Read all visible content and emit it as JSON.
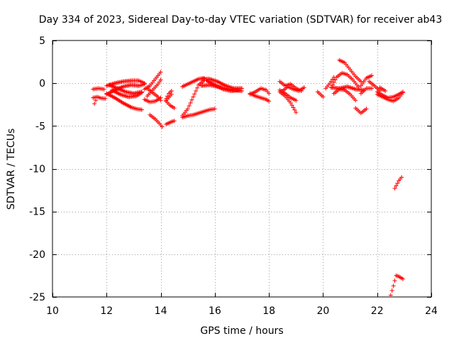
{
  "chart_data": {
    "type": "scatter",
    "title": "Day 334 of 2023, Sidereal Day-to-day VTEC variation (SDTVAR) for receiver ab43",
    "xlabel": "GPS time / hours",
    "ylabel": "SDTVAR / TECUs",
    "xlim": [
      10,
      24
    ],
    "ylim": [
      -25,
      5
    ],
    "xticks": [
      10,
      12,
      14,
      16,
      18,
      20,
      22,
      24
    ],
    "yticks": [
      5,
      0,
      -5,
      -10,
      -15,
      -20,
      -25
    ],
    "grid": true,
    "legend": "none",
    "marker": "+",
    "series_color": "#ff0000",
    "tracks": [
      {
        "x": [
          11.5,
          11.7,
          11.9
        ],
        "y": [
          -0.7,
          -0.6,
          -0.7
        ]
      },
      {
        "x": [
          11.5,
          11.65,
          11.8,
          11.95
        ],
        "y": [
          -1.7,
          -1.6,
          -1.75,
          -1.8
        ]
      },
      {
        "x": [
          11.55,
          11.6
        ],
        "y": [
          -2.4,
          -2.0
        ]
      },
      {
        "x": [
          12.0,
          12.3,
          12.6,
          12.9,
          13.2,
          13.4
        ],
        "y": [
          -0.3,
          0.0,
          0.2,
          0.3,
          0.3,
          0.0
        ]
      },
      {
        "x": [
          12.0,
          12.3,
          12.6,
          12.9,
          13.2,
          13.4
        ],
        "y": [
          -1.3,
          -0.8,
          -0.4,
          -0.2,
          -0.3,
          -0.1
        ]
      },
      {
        "x": [
          12.0,
          12.3,
          12.6,
          12.9,
          13.1,
          13.3
        ],
        "y": [
          -1.2,
          -1.7,
          -2.3,
          -2.8,
          -3.0,
          -3.1
        ]
      },
      {
        "x": [
          12.1,
          12.4,
          12.7,
          13.0,
          13.3
        ],
        "y": [
          -0.2,
          -0.6,
          -1.0,
          -1.2,
          -1.0
        ]
      },
      {
        "x": [
          12.2,
          12.5,
          12.8,
          13.1,
          13.3
        ],
        "y": [
          -0.8,
          -1.3,
          -1.6,
          -1.5,
          -1.1
        ]
      },
      {
        "x": [
          13.4,
          13.6,
          13.8,
          14.0
        ],
        "y": [
          -0.7,
          -0.3,
          0.5,
          1.3
        ]
      },
      {
        "x": [
          13.4,
          13.6,
          13.8,
          14.0
        ],
        "y": [
          -1.9,
          -2.2,
          -2.1,
          -1.7
        ]
      },
      {
        "x": [
          13.5,
          13.7,
          13.9,
          14.0
        ],
        "y": [
          -1.5,
          -0.8,
          -0.1,
          0.4
        ]
      },
      {
        "x": [
          13.5,
          13.7,
          13.9,
          14.0
        ],
        "y": [
          -0.6,
          -1.1,
          -1.6,
          -2.0
        ]
      },
      {
        "x": [
          13.6,
          13.8,
          13.95,
          14.05
        ],
        "y": [
          -3.7,
          -4.2,
          -4.7,
          -5.1
        ]
      },
      {
        "x": [
          14.2,
          14.4
        ],
        "y": [
          -2.0,
          -1.3
        ]
      },
      {
        "x": [
          14.2,
          14.3,
          14.4
        ],
        "y": [
          -1.8,
          -1.2,
          -0.9
        ]
      },
      {
        "x": [
          14.2,
          14.4,
          14.5
        ],
        "y": [
          -4.8,
          -4.5,
          -4.4
        ]
      },
      {
        "x": [
          14.2,
          14.35,
          14.5
        ],
        "y": [
          -2.1,
          -2.6,
          -2.9
        ]
      },
      {
        "x": [
          14.8,
          15.0,
          15.2,
          15.4,
          15.6,
          15.8,
          16.0
        ],
        "y": [
          -4.0,
          -3.8,
          -3.7,
          -3.5,
          -3.3,
          -3.1,
          -3.0
        ]
      },
      {
        "x": [
          14.8,
          15.0,
          15.2,
          15.4,
          15.6
        ],
        "y": [
          -3.8,
          -3.0,
          -1.6,
          -0.2,
          0.3
        ]
      },
      {
        "x": [
          14.8,
          15.0,
          15.2,
          15.4,
          15.6
        ],
        "y": [
          -0.4,
          -0.1,
          0.2,
          0.5,
          0.6
        ]
      },
      {
        "x": [
          15.5,
          15.8,
          16.1,
          16.4,
          16.7,
          17.0
        ],
        "y": [
          0.5,
          0.5,
          0.2,
          -0.3,
          -0.6,
          -0.6
        ]
      },
      {
        "x": [
          15.5,
          15.8,
          16.1,
          16.4,
          16.7,
          17.0
        ],
        "y": [
          -0.3,
          -0.2,
          -0.4,
          -0.6,
          -0.8,
          -0.9
        ]
      },
      {
        "x": [
          15.7,
          16.0,
          16.3,
          16.6,
          16.9
        ],
        "y": [
          0.3,
          -0.2,
          -0.7,
          -0.9,
          -0.8
        ]
      },
      {
        "x": [
          17.3,
          17.5,
          17.7,
          17.9,
          18.0
        ],
        "y": [
          -1.3,
          -1.0,
          -0.6,
          -0.8,
          -1.2
        ]
      },
      {
        "x": [
          17.3,
          17.5,
          17.7,
          17.9,
          18.0
        ],
        "y": [
          -1.2,
          -1.5,
          -1.7,
          -1.9,
          -2.1
        ]
      },
      {
        "x": [
          18.4,
          18.6,
          18.8,
          19.0
        ],
        "y": [
          -1.0,
          -1.5,
          -2.3,
          -3.4
        ]
      },
      {
        "x": [
          18.4,
          18.6,
          18.8,
          19.0,
          19.2
        ],
        "y": [
          0.2,
          -0.3,
          -0.1,
          -0.6,
          -0.9
        ]
      },
      {
        "x": [
          18.5,
          18.7,
          18.9,
          19.1,
          19.3
        ],
        "y": [
          -0.9,
          -0.4,
          -0.7,
          -0.9,
          -0.5
        ]
      },
      {
        "x": [
          18.4,
          18.6,
          18.8,
          19.0
        ],
        "y": [
          -0.8,
          -1.2,
          -1.7,
          -2.0
        ]
      },
      {
        "x": [
          19.8,
          19.9,
          20.0
        ],
        "y": [
          -1.0,
          -1.3,
          -1.6
        ]
      },
      {
        "x": [
          20.1,
          20.25,
          20.4
        ],
        "y": [
          -0.6,
          0.0,
          0.7
        ]
      },
      {
        "x": [
          20.6,
          20.8,
          21.0,
          21.2,
          21.4
        ],
        "y": [
          2.7,
          2.4,
          1.6,
          0.8,
          0.2
        ]
      },
      {
        "x": [
          20.3,
          20.5,
          20.7,
          20.9,
          21.1,
          21.3
        ],
        "y": [
          -0.5,
          0.7,
          1.2,
          1.0,
          0.4,
          -0.4
        ]
      },
      {
        "x": [
          20.4,
          20.6,
          20.8,
          21.0,
          21.2
        ],
        "y": [
          -1.2,
          -0.7,
          -0.8,
          -1.3,
          -2.0
        ]
      },
      {
        "x": [
          20.3,
          20.6,
          20.9,
          21.2,
          21.5
        ],
        "y": [
          -0.5,
          -0.6,
          -0.4,
          -0.7,
          -0.8
        ]
      },
      {
        "x": [
          21.2,
          21.4,
          21.6
        ],
        "y": [
          -2.9,
          -3.5,
          -3.0
        ]
      },
      {
        "x": [
          21.4,
          21.6,
          21.8
        ],
        "y": [
          -1.2,
          -0.6,
          -0.6
        ]
      },
      {
        "x": [
          21.4,
          21.6,
          21.8
        ],
        "y": [
          -0.3,
          0.6,
          0.9
        ]
      },
      {
        "x": [
          21.7,
          21.9,
          22.1
        ],
        "y": [
          0.2,
          -0.3,
          -0.9
        ]
      },
      {
        "x": [
          22.0,
          22.2,
          22.4,
          22.6,
          22.8,
          22.95
        ],
        "y": [
          -1.3,
          -1.6,
          -1.9,
          -2.1,
          -1.7,
          -1.1
        ]
      },
      {
        "x": [
          22.0,
          22.2,
          22.4,
          22.6,
          22.8,
          22.95
        ],
        "y": [
          -1.0,
          -1.4,
          -1.7,
          -1.6,
          -1.3,
          -1.0
        ]
      },
      {
        "x": [
          22.1,
          22.3
        ],
        "y": [
          -0.5,
          -0.9
        ]
      },
      {
        "x": [
          22.65,
          22.8,
          22.9
        ],
        "y": [
          -12.3,
          -11.4,
          -11.0
        ]
      },
      {
        "x": [
          22.5,
          22.6,
          22.7,
          22.8,
          22.95
        ],
        "y": [
          -24.8,
          -23.7,
          -22.5,
          -22.6,
          -22.9
        ]
      }
    ]
  }
}
